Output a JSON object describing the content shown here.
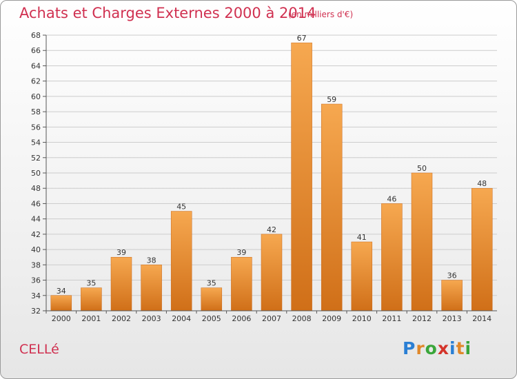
{
  "chart_data": {
    "type": "bar",
    "title": "Achats et Charges Externes 2000 à 2014",
    "subtitle": "(en milliers d'€)",
    "categories": [
      "2000",
      "2001",
      "2002",
      "2003",
      "2004",
      "2005",
      "2006",
      "2007",
      "2008",
      "2009",
      "2010",
      "2011",
      "2012",
      "2013",
      "2014"
    ],
    "values": [
      34,
      35,
      39,
      38,
      45,
      35,
      39,
      42,
      67,
      59,
      41,
      46,
      50,
      36,
      48
    ],
    "ylim": [
      32,
      68
    ],
    "ytick_step": 2,
    "grid": true,
    "bar_color": "#e88a2a",
    "bar_color_light": "#f6a850",
    "xlabel": "",
    "ylabel": ""
  },
  "commune": "CELLé",
  "logo": {
    "text": "Proxiti",
    "letters": [
      "P",
      "r",
      "o",
      "x",
      "i",
      "t",
      "i"
    ],
    "colors": [
      "#2a7fd4",
      "#e0882a",
      "#3aa63a",
      "#d4342a",
      "#2a7fd4",
      "#e0882a",
      "#3aa63a"
    ]
  }
}
